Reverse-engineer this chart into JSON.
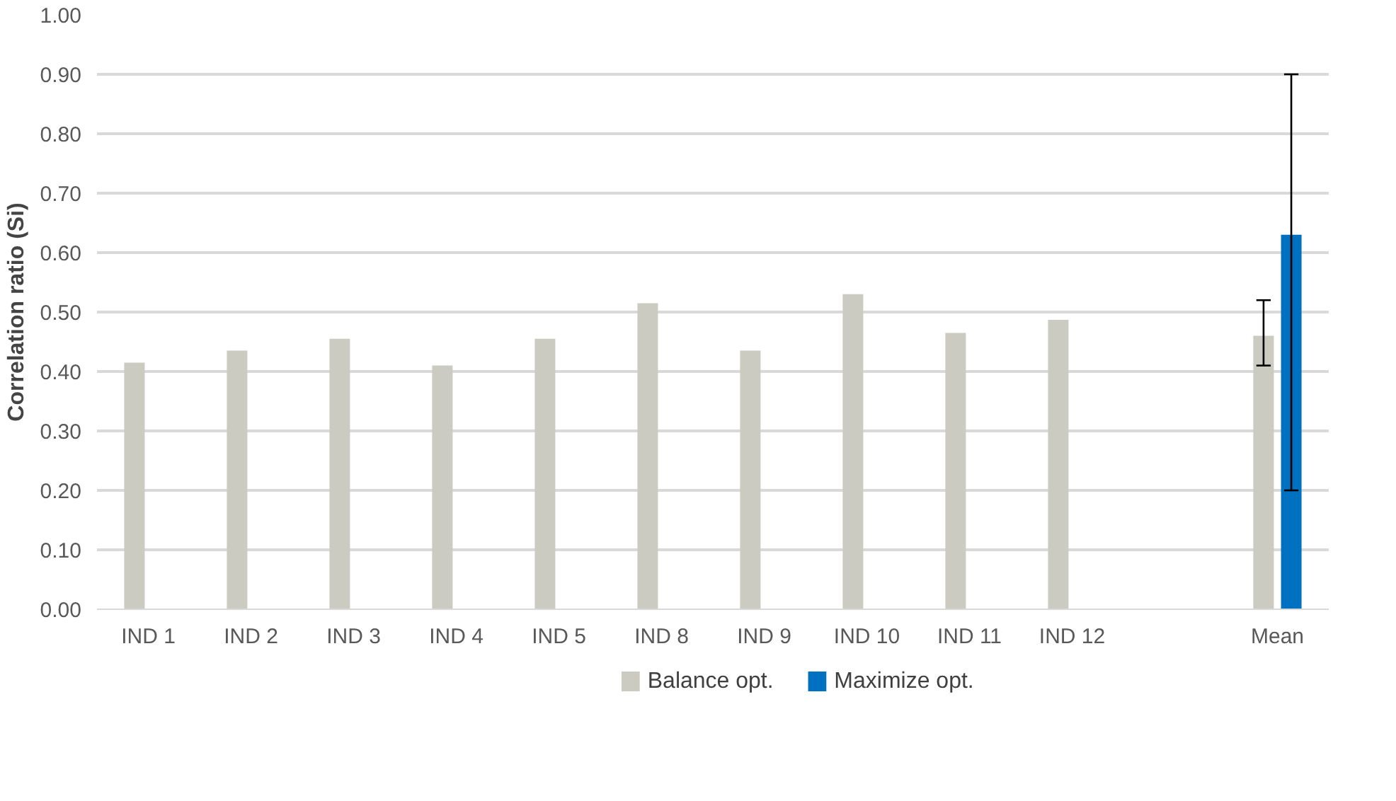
{
  "chart_data": {
    "type": "bar",
    "ylabel": "Correlation ratio (Si)",
    "categories": [
      "IND 1",
      "IND 2",
      "IND 3",
      "IND 4",
      "IND 5",
      "IND 8",
      "IND 9",
      "IND 10",
      "IND 11",
      "IND 12",
      null,
      "Mean"
    ],
    "series": [
      {
        "name": "Balance opt.",
        "color": "#cccbc1",
        "values": [
          0.415,
          0.435,
          0.455,
          0.41,
          0.455,
          0.515,
          0.435,
          0.53,
          0.465,
          0.487,
          null,
          0.46
        ],
        "errors": [
          null,
          null,
          null,
          null,
          null,
          null,
          null,
          null,
          null,
          null,
          null,
          [
            0.41,
            0.52
          ]
        ]
      },
      {
        "name": "Maximize opt.",
        "color": "#0070c0",
        "values": [
          null,
          null,
          null,
          null,
          null,
          null,
          null,
          null,
          null,
          null,
          null,
          0.63
        ],
        "errors": [
          null,
          null,
          null,
          null,
          null,
          null,
          null,
          null,
          null,
          null,
          null,
          [
            0.2,
            0.9
          ]
        ]
      }
    ],
    "ylim": [
      0,
      1
    ],
    "yticks": [
      {
        "value": 0,
        "label": "0.00"
      },
      {
        "value": 0.1,
        "label": "0.10"
      },
      {
        "value": 0.2,
        "label": "0.20"
      },
      {
        "value": 0.3,
        "label": "0.30"
      },
      {
        "value": 0.4,
        "label": "0.40"
      },
      {
        "value": 0.5,
        "label": "0.50"
      },
      {
        "value": 0.6,
        "label": "0.60"
      },
      {
        "value": 0.7,
        "label": "0.70"
      },
      {
        "value": 0.8,
        "label": "0.80"
      },
      {
        "value": 0.9,
        "label": "0.90"
      },
      {
        "value": 1,
        "label": "1.00"
      }
    ],
    "grid": "y",
    "legend": "bottom"
  }
}
